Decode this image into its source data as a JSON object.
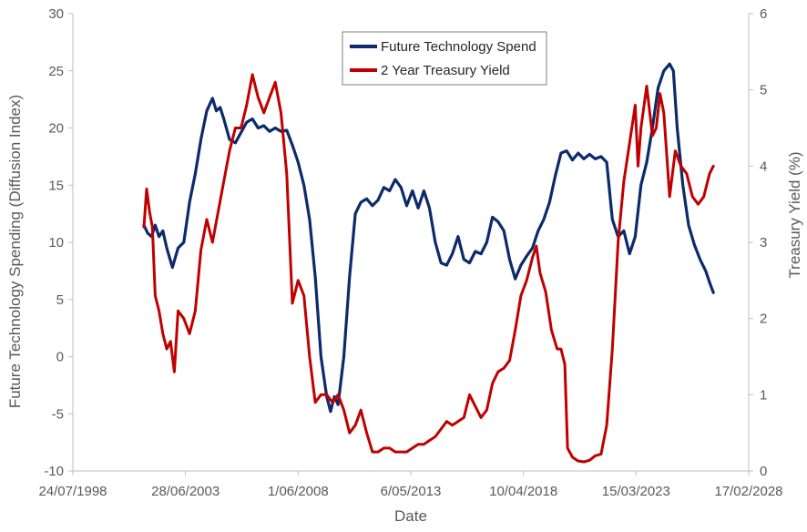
{
  "chart_data": {
    "type": "line",
    "xlabel": "Date",
    "ylabel_left": "Future Technology Spending (Diffusion Index)",
    "ylabel_right": "Treasury Yield (%)",
    "x_type": "date",
    "xlim": [
      "1998-07-24",
      "2028-02-17"
    ],
    "x_ticks": [
      "24/07/1998",
      "28/06/2003",
      "1/06/2008",
      "6/05/2013",
      "10/04/2018",
      "15/03/2023",
      "17/02/2028"
    ],
    "x_tick_dates": [
      "1998-07-24",
      "2003-06-28",
      "2008-06-01",
      "2013-05-06",
      "2018-04-10",
      "2023-03-15",
      "2028-02-17"
    ],
    "ylim_left": [
      -10,
      30
    ],
    "y_ticks_left": [
      "-10",
      "-5",
      "0",
      "5",
      "10",
      "15",
      "20",
      "25",
      "30"
    ],
    "ylim_right": [
      0,
      6
    ],
    "y_ticks_right": [
      "0",
      "1",
      "2",
      "3",
      "4",
      "5",
      "6"
    ],
    "grid": false,
    "legend": {
      "position": "top-center",
      "entries": [
        "Future Technology Spend",
        "2 Year Treasury Yield"
      ]
    },
    "series": [
      {
        "name": "Future Technology Spend",
        "axis": "left",
        "color": "#0d2a6b",
        "points": [
          [
            "2001-09-01",
            11.5
          ],
          [
            "2001-11-01",
            10.8
          ],
          [
            "2002-01-01",
            10.5
          ],
          [
            "2002-03-01",
            11.5
          ],
          [
            "2002-05-01",
            10.5
          ],
          [
            "2002-07-01",
            11.0
          ],
          [
            "2002-09-01",
            9.5
          ],
          [
            "2002-12-01",
            7.8
          ],
          [
            "2003-03-01",
            9.5
          ],
          [
            "2003-06-01",
            10.0
          ],
          [
            "2003-09-01",
            13.5
          ],
          [
            "2003-12-01",
            16.0
          ],
          [
            "2004-03-01",
            19.0
          ],
          [
            "2004-06-01",
            21.5
          ],
          [
            "2004-09-01",
            22.6
          ],
          [
            "2004-11-01",
            21.5
          ],
          [
            "2005-01-01",
            21.8
          ],
          [
            "2005-03-01",
            20.8
          ],
          [
            "2005-06-01",
            19.0
          ],
          [
            "2005-09-01",
            18.7
          ],
          [
            "2005-12-01",
            19.6
          ],
          [
            "2006-03-01",
            20.5
          ],
          [
            "2006-06-01",
            20.8
          ],
          [
            "2006-09-01",
            20.0
          ],
          [
            "2006-12-01",
            20.2
          ],
          [
            "2007-03-01",
            19.7
          ],
          [
            "2007-06-01",
            20.0
          ],
          [
            "2007-09-01",
            19.7
          ],
          [
            "2007-12-01",
            19.8
          ],
          [
            "2008-03-01",
            18.5
          ],
          [
            "2008-06-01",
            17.0
          ],
          [
            "2008-09-01",
            15.0
          ],
          [
            "2008-12-01",
            12.0
          ],
          [
            "2009-03-01",
            7.0
          ],
          [
            "2009-06-01",
            0.0
          ],
          [
            "2009-09-01",
            -3.5
          ],
          [
            "2009-11-01",
            -4.8
          ],
          [
            "2010-01-01",
            -3.5
          ],
          [
            "2010-03-01",
            -4.2
          ],
          [
            "2010-06-01",
            0.0
          ],
          [
            "2010-09-01",
            7.0
          ],
          [
            "2010-12-01",
            12.5
          ],
          [
            "2011-03-01",
            13.5
          ],
          [
            "2011-06-01",
            13.8
          ],
          [
            "2011-09-01",
            13.2
          ],
          [
            "2011-12-01",
            13.7
          ],
          [
            "2012-03-01",
            14.8
          ],
          [
            "2012-06-01",
            14.5
          ],
          [
            "2012-09-01",
            15.5
          ],
          [
            "2012-12-01",
            14.8
          ],
          [
            "2013-03-01",
            13.2
          ],
          [
            "2013-06-01",
            14.5
          ],
          [
            "2013-09-01",
            13.0
          ],
          [
            "2013-12-01",
            14.5
          ],
          [
            "2014-03-01",
            13.0
          ],
          [
            "2014-06-01",
            10.0
          ],
          [
            "2014-09-01",
            8.2
          ],
          [
            "2014-12-01",
            8.0
          ],
          [
            "2015-03-01",
            9.0
          ],
          [
            "2015-06-01",
            10.5
          ],
          [
            "2015-09-01",
            8.5
          ],
          [
            "2015-12-01",
            8.2
          ],
          [
            "2016-03-01",
            9.2
          ],
          [
            "2016-06-01",
            9.0
          ],
          [
            "2016-09-01",
            10.0
          ],
          [
            "2016-12-01",
            12.2
          ],
          [
            "2017-03-01",
            11.8
          ],
          [
            "2017-06-01",
            11.0
          ],
          [
            "2017-09-01",
            8.5
          ],
          [
            "2017-12-01",
            6.8
          ],
          [
            "2018-03-01",
            8.0
          ],
          [
            "2018-06-01",
            8.8
          ],
          [
            "2018-09-01",
            9.5
          ],
          [
            "2018-12-01",
            11.0
          ],
          [
            "2019-03-01",
            12.0
          ],
          [
            "2019-06-01",
            13.5
          ],
          [
            "2019-09-01",
            15.8
          ],
          [
            "2019-12-01",
            17.8
          ],
          [
            "2020-03-01",
            18.0
          ],
          [
            "2020-06-01",
            17.2
          ],
          [
            "2020-09-01",
            17.8
          ],
          [
            "2020-12-01",
            17.3
          ],
          [
            "2021-03-01",
            17.7
          ],
          [
            "2021-06-01",
            17.3
          ],
          [
            "2021-09-01",
            17.5
          ],
          [
            "2021-12-01",
            17.0
          ],
          [
            "2022-03-01",
            12.0
          ],
          [
            "2022-06-01",
            10.5
          ],
          [
            "2022-09-01",
            11.0
          ],
          [
            "2022-12-01",
            9.0
          ],
          [
            "2023-03-01",
            10.5
          ],
          [
            "2023-06-01",
            15.0
          ],
          [
            "2023-09-01",
            17.0
          ],
          [
            "2023-12-01",
            20.0
          ],
          [
            "2024-03-01",
            23.5
          ],
          [
            "2024-06-01",
            25.0
          ],
          [
            "2024-09-01",
            25.6
          ],
          [
            "2024-11-01",
            25.0
          ],
          [
            "2025-01-01",
            20.0
          ],
          [
            "2025-04-01",
            15.0
          ],
          [
            "2025-07-01",
            11.5
          ],
          [
            "2025-10-01",
            9.8
          ],
          [
            "2026-01-01",
            8.5
          ],
          [
            "2026-04-01",
            7.5
          ],
          [
            "2026-06-01",
            6.5
          ],
          [
            "2026-08-01",
            5.6
          ]
        ]
      },
      {
        "name": "2 Year Treasury Yield",
        "axis": "right",
        "color": "#c00000",
        "points": [
          [
            "2001-09-01",
            3.2
          ],
          [
            "2001-10-15",
            3.7
          ],
          [
            "2001-12-01",
            3.4
          ],
          [
            "2002-01-15",
            3.2
          ],
          [
            "2002-03-01",
            2.3
          ],
          [
            "2002-05-01",
            2.1
          ],
          [
            "2002-07-01",
            1.8
          ],
          [
            "2002-09-01",
            1.6
          ],
          [
            "2002-11-01",
            1.7
          ],
          [
            "2003-01-01",
            1.3
          ],
          [
            "2003-03-01",
            2.1
          ],
          [
            "2003-06-01",
            2.0
          ],
          [
            "2003-09-01",
            1.8
          ],
          [
            "2003-12-01",
            2.1
          ],
          [
            "2004-03-01",
            2.9
          ],
          [
            "2004-06-01",
            3.3
          ],
          [
            "2004-09-01",
            3.0
          ],
          [
            "2004-12-01",
            3.4
          ],
          [
            "2005-03-01",
            3.8
          ],
          [
            "2005-06-01",
            4.2
          ],
          [
            "2005-09-01",
            4.5
          ],
          [
            "2005-12-01",
            4.5
          ],
          [
            "2006-03-01",
            4.8
          ],
          [
            "2006-06-01",
            5.2
          ],
          [
            "2006-09-01",
            4.9
          ],
          [
            "2006-12-01",
            4.7
          ],
          [
            "2007-03-01",
            4.9
          ],
          [
            "2007-06-01",
            5.1
          ],
          [
            "2007-09-01",
            4.7
          ],
          [
            "2007-12-01",
            3.9
          ],
          [
            "2008-03-01",
            2.2
          ],
          [
            "2008-06-01",
            2.5
          ],
          [
            "2008-09-01",
            2.3
          ],
          [
            "2008-12-01",
            1.5
          ],
          [
            "2009-03-01",
            0.9
          ],
          [
            "2009-06-01",
            1.0
          ],
          [
            "2009-09-01",
            1.0
          ],
          [
            "2009-12-01",
            0.9
          ],
          [
            "2010-03-01",
            1.0
          ],
          [
            "2010-06-01",
            0.8
          ],
          [
            "2010-09-01",
            0.5
          ],
          [
            "2010-12-01",
            0.6
          ],
          [
            "2011-03-01",
            0.8
          ],
          [
            "2011-06-01",
            0.5
          ],
          [
            "2011-09-01",
            0.25
          ],
          [
            "2011-12-01",
            0.25
          ],
          [
            "2012-03-01",
            0.3
          ],
          [
            "2012-06-01",
            0.3
          ],
          [
            "2012-09-01",
            0.25
          ],
          [
            "2012-12-01",
            0.25
          ],
          [
            "2013-03-01",
            0.25
          ],
          [
            "2013-06-01",
            0.3
          ],
          [
            "2013-09-01",
            0.35
          ],
          [
            "2013-12-01",
            0.35
          ],
          [
            "2014-03-01",
            0.4
          ],
          [
            "2014-06-01",
            0.45
          ],
          [
            "2014-09-01",
            0.55
          ],
          [
            "2014-12-01",
            0.65
          ],
          [
            "2015-03-01",
            0.6
          ],
          [
            "2015-06-01",
            0.65
          ],
          [
            "2015-09-01",
            0.7
          ],
          [
            "2015-12-01",
            1.0
          ],
          [
            "2016-03-01",
            0.85
          ],
          [
            "2016-06-01",
            0.7
          ],
          [
            "2016-09-01",
            0.8
          ],
          [
            "2016-12-01",
            1.15
          ],
          [
            "2017-03-01",
            1.3
          ],
          [
            "2017-06-01",
            1.35
          ],
          [
            "2017-09-01",
            1.45
          ],
          [
            "2017-12-01",
            1.85
          ],
          [
            "2018-03-01",
            2.3
          ],
          [
            "2018-06-01",
            2.5
          ],
          [
            "2018-09-01",
            2.8
          ],
          [
            "2018-11-01",
            2.95
          ],
          [
            "2019-01-01",
            2.6
          ],
          [
            "2019-04-01",
            2.35
          ],
          [
            "2019-07-01",
            1.85
          ],
          [
            "2019-10-01",
            1.6
          ],
          [
            "2019-12-01",
            1.6
          ],
          [
            "2020-02-01",
            1.4
          ],
          [
            "2020-03-15",
            0.3
          ],
          [
            "2020-06-01",
            0.18
          ],
          [
            "2020-09-01",
            0.13
          ],
          [
            "2020-12-01",
            0.12
          ],
          [
            "2021-03-01",
            0.14
          ],
          [
            "2021-06-01",
            0.2
          ],
          [
            "2021-09-01",
            0.22
          ],
          [
            "2021-12-01",
            0.6
          ],
          [
            "2022-03-01",
            1.6
          ],
          [
            "2022-06-01",
            3.0
          ],
          [
            "2022-09-01",
            3.8
          ],
          [
            "2022-12-01",
            4.3
          ],
          [
            "2023-03-01",
            4.8
          ],
          [
            "2023-04-15",
            4.0
          ],
          [
            "2023-06-01",
            4.5
          ],
          [
            "2023-09-01",
            5.05
          ],
          [
            "2023-12-01",
            4.4
          ],
          [
            "2024-02-01",
            4.5
          ],
          [
            "2024-04-01",
            4.95
          ],
          [
            "2024-06-01",
            4.7
          ],
          [
            "2024-09-01",
            3.6
          ],
          [
            "2024-12-01",
            4.2
          ],
          [
            "2025-03-01",
            4.0
          ],
          [
            "2025-06-01",
            3.9
          ],
          [
            "2025-09-01",
            3.6
          ],
          [
            "2025-12-01",
            3.5
          ],
          [
            "2026-03-01",
            3.6
          ],
          [
            "2026-06-01",
            3.9
          ],
          [
            "2026-08-01",
            4.0
          ]
        ]
      }
    ]
  }
}
